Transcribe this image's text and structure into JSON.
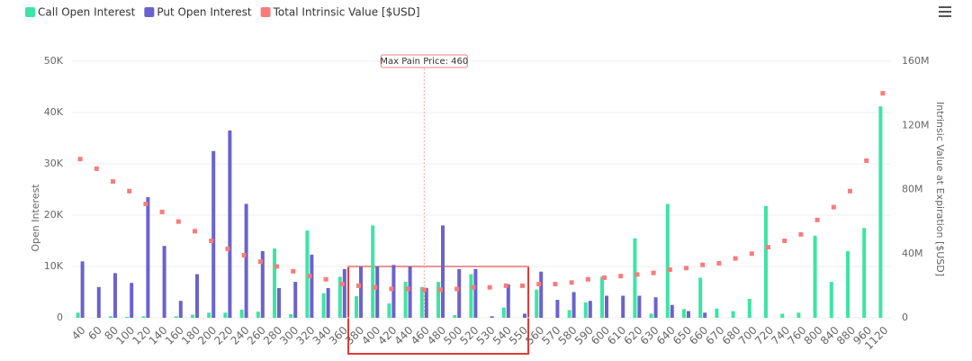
{
  "chart_data": {
    "type": "bar",
    "categories": [
      40,
      60,
      80,
      100,
      120,
      140,
      160,
      180,
      200,
      220,
      240,
      260,
      280,
      300,
      320,
      340,
      360,
      380,
      400,
      420,
      440,
      460,
      480,
      500,
      520,
      530,
      540,
      550,
      560,
      570,
      580,
      590,
      600,
      610,
      620,
      630,
      640,
      650,
      660,
      670,
      680,
      700,
      720,
      740,
      760,
      800,
      840,
      880,
      960,
      1120
    ],
    "series": [
      {
        "name": "Call Open Interest",
        "color": "#3ee4a4",
        "values": [
          1000,
          0,
          300,
          200,
          300,
          0,
          300,
          600,
          1000,
          1000,
          1600,
          1200,
          13500,
          700,
          17000,
          4800,
          8000,
          4200,
          18000,
          2800,
          7000,
          6000,
          7000,
          500,
          8500,
          0,
          2000,
          0,
          5500,
          0,
          1500,
          3000,
          8000,
          0,
          15500,
          800,
          22200,
          1700,
          7800,
          1800,
          1300,
          3700,
          21800,
          800,
          1000,
          16000,
          7000,
          13000,
          17500,
          41200
        ]
      },
      {
        "name": "Put Open Interest",
        "color": "#6b62cf",
        "values": [
          11000,
          6000,
          8700,
          6800,
          23500,
          14000,
          3300,
          8500,
          32500,
          36500,
          22200,
          13000,
          5800,
          7000,
          12300,
          5800,
          9500,
          10000,
          10000,
          10300,
          10000,
          5800,
          18000,
          9500,
          9500,
          300,
          6500,
          800,
          9000,
          3500,
          5000,
          3300,
          4300,
          4300,
          4300,
          4000,
          2500,
          1300,
          1000,
          0,
          0,
          0,
          0,
          0,
          0,
          0,
          0,
          0,
          0,
          0
        ]
      },
      {
        "name": "Total Intrinsic Value [$USD]",
        "color": "#f87c7c",
        "type": "scatter",
        "axis": "y2",
        "values": [
          99000000,
          93000000,
          85000000,
          79000000,
          71000000,
          66000000,
          60000000,
          54000000,
          48000000,
          43000000,
          39000000,
          35000000,
          32000000,
          29000000,
          26000000,
          24000000,
          21000000,
          20000000,
          19000000,
          18000000,
          18000000,
          17500000,
          17500000,
          18000000,
          19000000,
          19000000,
          20000000,
          20000000,
          21000000,
          21000000,
          22000000,
          24000000,
          25000000,
          26000000,
          27000000,
          28000000,
          30000000,
          31000000,
          33000000,
          34000000,
          37000000,
          40000000,
          44000000,
          48000000,
          52000000,
          61000000,
          69000000,
          79000000,
          98000000,
          140000000
        ]
      }
    ],
    "ylabel": "Open Interest",
    "y2label": "Intrinsic Value at Expiration [$USD]",
    "ylim": [
      0,
      50000
    ],
    "yticks": [
      0,
      {
        "value": 10000,
        "label": "10K"
      },
      {
        "value": 20000,
        "label": "20K"
      },
      {
        "value": 30000,
        "label": "30K"
      },
      {
        "value": 40000,
        "label": "40K"
      },
      {
        "value": 50000,
        "label": "50K"
      }
    ],
    "y2lim": [
      0,
      160000000
    ],
    "y2ticks": [
      0,
      {
        "value": 40000000,
        "label": "40M"
      },
      {
        "value": 80000000,
        "label": "80M"
      },
      {
        "value": 120000000,
        "label": "120M"
      },
      {
        "value": 160000000,
        "label": "160M"
      }
    ],
    "grid": true,
    "max_pain_price": 460,
    "annotation": "Max Pain Price: 460"
  }
}
